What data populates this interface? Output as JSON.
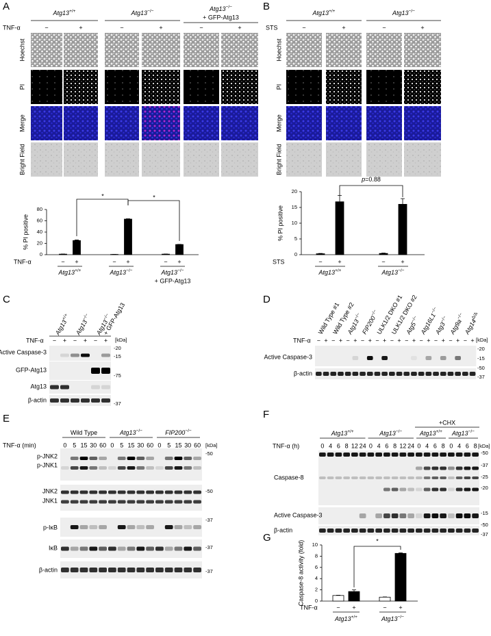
{
  "A": {
    "label": "A",
    "treatment": "TNF-α",
    "signs": [
      "−",
      "+"
    ],
    "groups": [
      {
        "name": "Atg13",
        "sup": "+/+"
      },
      {
        "name": "Atg13",
        "sup": "−/−"
      },
      {
        "name": "Atg13",
        "sup": "−/−",
        "extra": "+ GFP-Atg13"
      }
    ],
    "rows": [
      "Hoechst",
      "PI",
      "Merge",
      "Bright Field"
    ],
    "chart": {
      "type": "bar",
      "ylabel": "% PI positive",
      "ylim": [
        0,
        80
      ],
      "yticks": [
        0,
        20,
        40,
        60,
        80
      ],
      "values": [
        [
          1,
          25
        ],
        [
          0.5,
          63
        ],
        [
          1,
          18
        ]
      ],
      "errors": [
        [
          0.2,
          1
        ],
        [
          0.1,
          0.6
        ],
        [
          0.2,
          0.3
        ]
      ],
      "colors": [
        "#000000",
        "#000000"
      ],
      "annotations": [
        "*",
        "*"
      ]
    }
  },
  "B": {
    "label": "B",
    "treatment": "STS",
    "signs": [
      "−",
      "+"
    ],
    "groups": [
      {
        "name": "Atg13",
        "sup": "+/+"
      },
      {
        "name": "Atg13",
        "sup": "−/−"
      }
    ],
    "rows": [
      "Hoechst",
      "PI",
      "Merge",
      "Bright Field"
    ],
    "chart": {
      "type": "bar",
      "ylabel": "% PI positive",
      "ylim": [
        0,
        20
      ],
      "yticks": [
        0,
        5,
        10,
        15,
        20
      ],
      "values": [
        [
          0.3,
          16.8
        ],
        [
          0.4,
          16
        ]
      ],
      "errors": [
        [
          0.1,
          2
        ],
        [
          0.1,
          1.8
        ]
      ],
      "colors": [
        "#000000",
        "#000000"
      ],
      "annotation": {
        "var": "p",
        "text": "=0.88"
      }
    }
  },
  "C": {
    "label": "C",
    "treatment": "TNF-α",
    "signs": [
      "−",
      "+"
    ],
    "unit": "[kDa]",
    "lanes": [
      {
        "name": "Atg13",
        "sup": "+/+"
      },
      {
        "name": "Atg13",
        "sup": "−/−"
      },
      {
        "name": "Atg13",
        "sup": "−/−",
        "extra": "+ GFP-Atg13"
      }
    ],
    "rows": [
      "Active Caspase-3",
      "GFP-Atg13",
      "Atg13",
      "β-actin"
    ],
    "markers": [
      "-20",
      "-15",
      "-75",
      "-37"
    ]
  },
  "D": {
    "label": "D",
    "treatment": "TNF-α",
    "signs": [
      "−",
      "+"
    ],
    "unit": "[kDa]",
    "lanes": [
      {
        "name": "Wild Type #1"
      },
      {
        "name": "Wild Type #2"
      },
      {
        "name": "Atg13",
        "sup": "−/−"
      },
      {
        "name": "FIP200",
        "sup": "−/−"
      },
      {
        "name": "ULK1/2 DKO #1"
      },
      {
        "name": "ULK1/2 DKO #2"
      },
      {
        "name": "Atg5",
        "sup": "−/−"
      },
      {
        "name": "Atg16L1",
        "sup": "−/−"
      },
      {
        "name": "Atg3",
        "sup": "−/−"
      },
      {
        "name": "Atg9a",
        "sup": "−/−"
      },
      {
        "name": "Atg14",
        "sup": "Δ/Δ"
      }
    ],
    "rows": [
      "Active Caspase-3",
      "β-actin"
    ],
    "markers": [
      "-20",
      "-15",
      "-50",
      "-37"
    ]
  },
  "E": {
    "label": "E",
    "treatment": "TNF-α (min)",
    "unit": "[kDa]",
    "groups": [
      {
        "name": "Wild Type"
      },
      {
        "name": "Atg13",
        "sup": "−/−"
      },
      {
        "name": "FIP200",
        "sup": "−/−"
      }
    ],
    "times": [
      0,
      5,
      15,
      30,
      60
    ],
    "rows": [
      "p-JNK2",
      "p-JNK1",
      "JNK2",
      "JNK1",
      "p-IκB",
      "IκB",
      "β-actin"
    ],
    "markers": [
      "-50",
      "-50",
      "-37",
      "-37",
      "-37"
    ]
  },
  "F": {
    "label": "F",
    "treatment": "TNF-α (h)",
    "unit": "[kDa]",
    "chx": "+CHX",
    "groups": [
      {
        "name": "Atg13",
        "sup": "+/+"
      },
      {
        "name": "Atg13",
        "sup": "−/−"
      },
      {
        "name": "Atg13",
        "sup": "+/+"
      },
      {
        "name": "Atg13",
        "sup": "−/−"
      }
    ],
    "times": [
      [
        0,
        4,
        6,
        8,
        12,
        24
      ],
      [
        0,
        4,
        6,
        8,
        12,
        24
      ],
      [
        0,
        4,
        6,
        8
      ],
      [
        0,
        4,
        6,
        8
      ]
    ],
    "rows": [
      "Caspase-8",
      "Active Caspase-3",
      "β-actin"
    ],
    "markers": [
      "-50",
      "-37",
      "-25",
      "-20",
      "-15",
      "-50",
      "-37"
    ]
  },
  "G": {
    "label": "G",
    "treatment": "TNF-α",
    "signs": [
      "−",
      "+"
    ],
    "groups": [
      {
        "name": "Atg13",
        "sup": "+/+"
      },
      {
        "name": "Atg13",
        "sup": "−/−"
      }
    ],
    "chart": {
      "type": "bar",
      "ylabel": "Caspase-8 activity (fold)",
      "ylim": [
        0,
        10
      ],
      "yticks": [
        0,
        2,
        4,
        6,
        8,
        10
      ],
      "values": [
        [
          1,
          1.7
        ],
        [
          0.7,
          8.5
        ]
      ],
      "errors": [
        [
          0.05,
          0.3
        ],
        [
          0.05,
          0.1
        ]
      ],
      "colors": [
        "#ffffff",
        "#000000"
      ],
      "annotations": [
        "*"
      ]
    }
  }
}
